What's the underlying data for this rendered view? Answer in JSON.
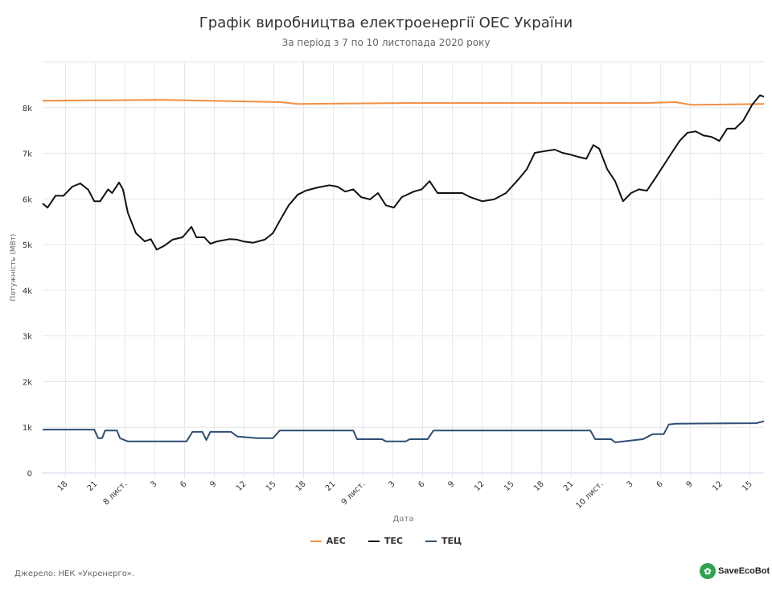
{
  "chart_data": {
    "type": "line",
    "title": "Графік виробництва електроенергії ОЕС України",
    "subtitle": "За період з 7 по 10 листопада 2020 року",
    "xlabel": "Дата",
    "ylabel": "Потужність (МВт)",
    "ylim": [
      0,
      9000
    ],
    "xlim_hours_from_nov7": [
      15.7,
      88.4
    ],
    "grid": true,
    "legend_placement": "bottom-center",
    "yticks": [
      {
        "v": 0,
        "label": "0"
      },
      {
        "v": 1000,
        "label": "1k"
      },
      {
        "v": 2000,
        "label": "2k"
      },
      {
        "v": 3000,
        "label": "3k"
      },
      {
        "v": 4000,
        "label": "4k"
      },
      {
        "v": 5000,
        "label": "5k"
      },
      {
        "v": 6000,
        "label": "6k"
      },
      {
        "v": 7000,
        "label": "7k"
      },
      {
        "v": 8000,
        "label": "8k"
      }
    ],
    "xticks": [
      {
        "h": 18,
        "label": "18"
      },
      {
        "h": 21,
        "label": "21"
      },
      {
        "h": 24,
        "label": "8 лист."
      },
      {
        "h": 27,
        "label": "3"
      },
      {
        "h": 30,
        "label": "6"
      },
      {
        "h": 33,
        "label": "9"
      },
      {
        "h": 36,
        "label": "12"
      },
      {
        "h": 39,
        "label": "15"
      },
      {
        "h": 42,
        "label": "18"
      },
      {
        "h": 45,
        "label": "21"
      },
      {
        "h": 48,
        "label": "9 лист."
      },
      {
        "h": 51,
        "label": "3"
      },
      {
        "h": 54,
        "label": "6"
      },
      {
        "h": 57,
        "label": "9"
      },
      {
        "h": 60,
        "label": "12"
      },
      {
        "h": 63,
        "label": "15"
      },
      {
        "h": 66,
        "label": "18"
      },
      {
        "h": 69,
        "label": "21"
      },
      {
        "h": 72,
        "label": "10 лист."
      },
      {
        "h": 75,
        "label": "3"
      },
      {
        "h": 78,
        "label": "6"
      },
      {
        "h": 81,
        "label": "9"
      },
      {
        "h": 84,
        "label": "12"
      },
      {
        "h": 87,
        "label": "15"
      }
    ],
    "series": [
      {
        "name": "АЕС",
        "color": "#f28f43",
        "points": [
          [
            15.7,
            8150
          ],
          [
            27.6,
            8170
          ],
          [
            39.7,
            8120
          ],
          [
            41.4,
            8080
          ],
          [
            51.9,
            8100
          ],
          [
            60,
            8100
          ],
          [
            76.2,
            8100
          ],
          [
            79.5,
            8120
          ],
          [
            81.1,
            8060
          ],
          [
            88.4,
            8080
          ]
        ]
      },
      {
        "name": "ТЕС",
        "color": "#111111",
        "points": [
          [
            15.7,
            5900
          ],
          [
            16.2,
            5810
          ],
          [
            17,
            6070
          ],
          [
            17.8,
            6070
          ],
          [
            18.7,
            6270
          ],
          [
            19.5,
            6340
          ],
          [
            20.3,
            6200
          ],
          [
            20.9,
            5950
          ],
          [
            21.5,
            5950
          ],
          [
            22.3,
            6210
          ],
          [
            22.7,
            6130
          ],
          [
            23.4,
            6360
          ],
          [
            23.8,
            6210
          ],
          [
            24.3,
            5690
          ],
          [
            25.1,
            5250
          ],
          [
            26,
            5070
          ],
          [
            26.6,
            5120
          ],
          [
            27.2,
            4890
          ],
          [
            28,
            4980
          ],
          [
            28.8,
            5110
          ],
          [
            29.8,
            5160
          ],
          [
            30.7,
            5390
          ],
          [
            31.2,
            5160
          ],
          [
            32,
            5160
          ],
          [
            32.6,
            5020
          ],
          [
            33.3,
            5070
          ],
          [
            34.5,
            5120
          ],
          [
            35.3,
            5110
          ],
          [
            35.9,
            5070
          ],
          [
            36.9,
            5040
          ],
          [
            38.1,
            5110
          ],
          [
            38.9,
            5250
          ],
          [
            39.7,
            5560
          ],
          [
            40.5,
            5860
          ],
          [
            41.4,
            6090
          ],
          [
            42.2,
            6180
          ],
          [
            43.4,
            6250
          ],
          [
            44.6,
            6300
          ],
          [
            45.4,
            6270
          ],
          [
            46.2,
            6160
          ],
          [
            47,
            6210
          ],
          [
            47.8,
            6040
          ],
          [
            48.7,
            5990
          ],
          [
            49.5,
            6130
          ],
          [
            50.3,
            5860
          ],
          [
            51.1,
            5810
          ],
          [
            51.9,
            6040
          ],
          [
            53.1,
            6160
          ],
          [
            53.9,
            6210
          ],
          [
            54.7,
            6390
          ],
          [
            55.5,
            6130
          ],
          [
            56.4,
            6130
          ],
          [
            57.2,
            6130
          ],
          [
            58,
            6130
          ],
          [
            58.8,
            6040
          ],
          [
            60,
            5950
          ],
          [
            61.2,
            5990
          ],
          [
            62.4,
            6130
          ],
          [
            63.7,
            6440
          ],
          [
            64.5,
            6650
          ],
          [
            65.3,
            7010
          ],
          [
            66.1,
            7040
          ],
          [
            67.3,
            7080
          ],
          [
            68.1,
            7010
          ],
          [
            68.9,
            6970
          ],
          [
            69.7,
            6920
          ],
          [
            70.5,
            6880
          ],
          [
            71.2,
            7180
          ],
          [
            71.8,
            7100
          ],
          [
            72.6,
            6650
          ],
          [
            73.4,
            6390
          ],
          [
            74.2,
            5950
          ],
          [
            75,
            6130
          ],
          [
            75.8,
            6210
          ],
          [
            76.6,
            6180
          ],
          [
            77.4,
            6440
          ],
          [
            78.3,
            6740
          ],
          [
            79.1,
            7010
          ],
          [
            79.9,
            7270
          ],
          [
            80.7,
            7450
          ],
          [
            81.5,
            7480
          ],
          [
            82.3,
            7390
          ],
          [
            83.1,
            7360
          ],
          [
            83.9,
            7270
          ],
          [
            84.7,
            7540
          ],
          [
            85.5,
            7540
          ],
          [
            86.3,
            7710
          ],
          [
            87.2,
            8060
          ],
          [
            88,
            8270
          ],
          [
            88.4,
            8240
          ]
        ]
      },
      {
        "name": "ТЕЦ",
        "color": "#2f4e74",
        "points": [
          [
            15.7,
            950
          ],
          [
            20.9,
            950
          ],
          [
            21.3,
            760
          ],
          [
            21.7,
            760
          ],
          [
            22,
            930
          ],
          [
            23.2,
            930
          ],
          [
            23.5,
            760
          ],
          [
            24.3,
            690
          ],
          [
            30.2,
            690
          ],
          [
            30.8,
            900
          ],
          [
            31.8,
            900
          ],
          [
            32.2,
            720
          ],
          [
            32.6,
            900
          ],
          [
            34.7,
            900
          ],
          [
            35.3,
            800
          ],
          [
            37.3,
            760
          ],
          [
            38.9,
            760
          ],
          [
            39.6,
            930
          ],
          [
            47,
            930
          ],
          [
            47.4,
            740
          ],
          [
            49.9,
            740
          ],
          [
            50.3,
            690
          ],
          [
            52.3,
            690
          ],
          [
            52.7,
            740
          ],
          [
            54.5,
            740
          ],
          [
            55.1,
            930
          ],
          [
            70.9,
            930
          ],
          [
            71.4,
            740
          ],
          [
            73,
            740
          ],
          [
            73.4,
            670
          ],
          [
            74.6,
            700
          ],
          [
            76.2,
            740
          ],
          [
            77.2,
            850
          ],
          [
            78.3,
            850
          ],
          [
            78.8,
            1060
          ],
          [
            79.5,
            1080
          ],
          [
            87.6,
            1090
          ],
          [
            88.4,
            1130
          ]
        ]
      }
    ]
  },
  "footer": {
    "source": "Джерело: НЕК «Укренерго».",
    "logo": "SaveEcoBot"
  }
}
